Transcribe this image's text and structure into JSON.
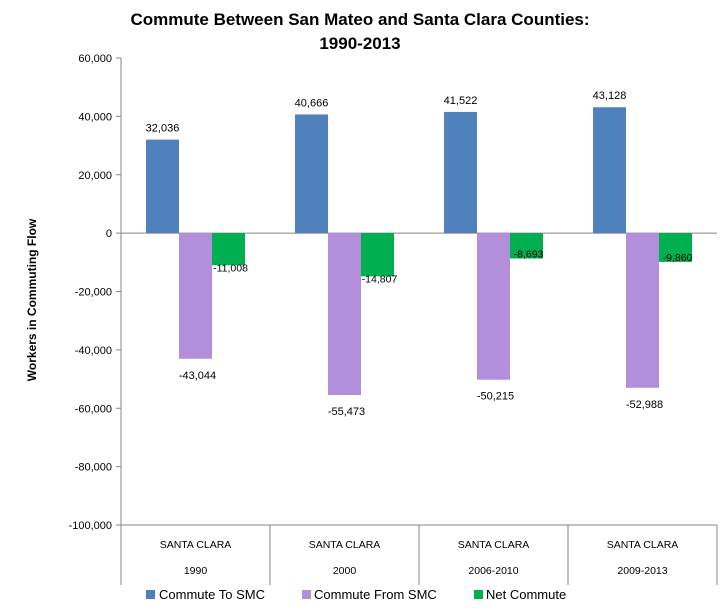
{
  "chart_data": {
    "type": "bar",
    "title_line1": "Commute Between San Mateo and Santa Clara Counties:",
    "title_line2": "1990-2013",
    "ylabel": "Workers in Commuting Flow",
    "ylim": [
      -100000,
      60000
    ],
    "yticks": [
      60000,
      40000,
      20000,
      0,
      -20000,
      -40000,
      -60000,
      -80000,
      -100000
    ],
    "ytick_labels": [
      "60,000",
      "40,000",
      "20,000",
      "0",
      "-20,000",
      "-40,000",
      "-60,000",
      "-80,000",
      "-100,000"
    ],
    "categories": [
      {
        "county": "SANTA CLARA",
        "period": "1990"
      },
      {
        "county": "SANTA CLARA",
        "period": "2000"
      },
      {
        "county": "SANTA CLARA",
        "period": "2006-2010"
      },
      {
        "county": "SANTA CLARA",
        "period": "2009-2013"
      }
    ],
    "series": [
      {
        "name": "Commute To SMC",
        "color": "#4F81BD",
        "values": [
          32036,
          40666,
          41522,
          43128
        ],
        "labels": [
          "32,036",
          "40,666",
          "41,522",
          "43,128"
        ]
      },
      {
        "name": "Commute From SMC",
        "color": "#B38FDB",
        "values": [
          -43044,
          -55473,
          -50215,
          -52988
        ],
        "labels": [
          "-43,044",
          "-55,473",
          "-50,215",
          "-52,988"
        ]
      },
      {
        "name": "Net Commute",
        "color": "#00B050",
        "values": [
          -11008,
          -14807,
          -8693,
          -9860
        ],
        "labels": [
          "-11,008",
          "-14,807",
          "-8,693",
          "-9,860"
        ]
      }
    ],
    "grid": false,
    "legend_position": "bottom"
  }
}
